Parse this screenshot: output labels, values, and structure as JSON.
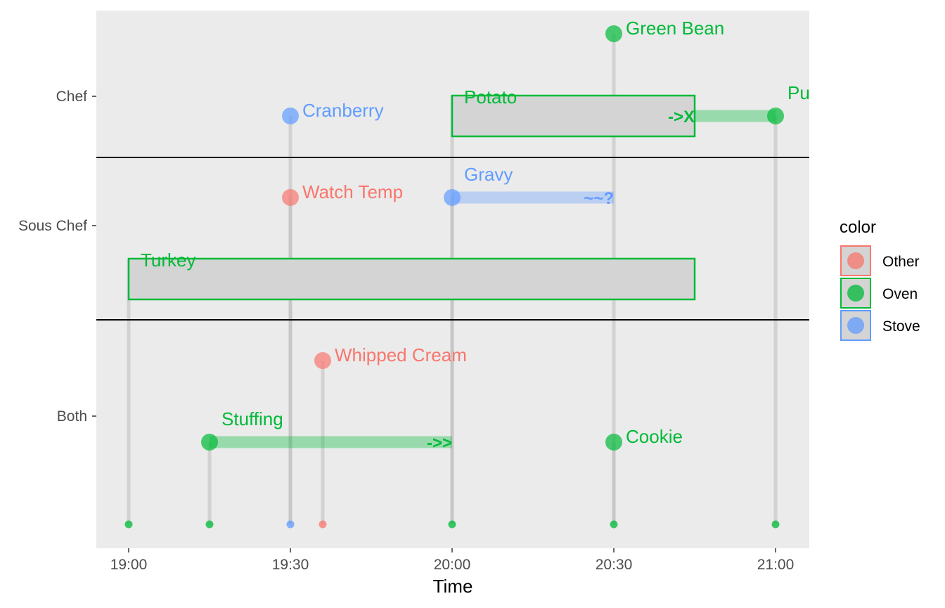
{
  "chart_data": {
    "type": "timeline",
    "xlabel": "Time",
    "x_ticks": [
      "19:00",
      "19:30",
      "20:00",
      "20:30",
      "21:00"
    ],
    "x_range": [
      "18:54",
      "21:06"
    ],
    "groups": [
      "Chef",
      "Sous Chef",
      "Both"
    ],
    "colors": {
      "Other": "#F8766D",
      "Oven": "#00BA38",
      "Stove": "#619CFF"
    },
    "legend": {
      "title": "color",
      "position": "right",
      "entries": [
        "Other",
        "Oven",
        "Stove"
      ]
    },
    "events": [
      {
        "label": "Green Bean",
        "group": "Chef",
        "color": "Oven",
        "start": "20:30",
        "kind": "point"
      },
      {
        "label": "Cranberry",
        "group": "Chef",
        "color": "Stove",
        "start": "19:30",
        "kind": "point"
      },
      {
        "label": "Potato",
        "group": "Chef",
        "color": "Oven",
        "start": "20:00",
        "end": "20:45",
        "kind": "box"
      },
      {
        "label": "Pu",
        "group": "Chef",
        "color": "Oven",
        "start": "21:00",
        "end": "20:45",
        "kind": "bar",
        "end_marker": "->X"
      },
      {
        "label": "Gravy",
        "group": "Sous Chef",
        "color": "Stove",
        "start": "20:00",
        "end": "20:30",
        "kind": "bar",
        "end_marker": "~~?"
      },
      {
        "label": "Watch Temp",
        "group": "Sous Chef",
        "color": "Other",
        "start": "19:30",
        "kind": "point"
      },
      {
        "label": "Turkey",
        "group": "Sous Chef",
        "color": "Oven",
        "start": "19:00",
        "end": "20:45",
        "kind": "box"
      },
      {
        "label": "Whipped Cream",
        "group": "Both",
        "color": "Other",
        "start": "19:36",
        "kind": "point"
      },
      {
        "label": "Stuffing",
        "group": "Both",
        "color": "Oven",
        "start": "19:15",
        "end": "20:00",
        "kind": "bar",
        "end_marker": "->>"
      },
      {
        "label": "Cookie",
        "group": "Both",
        "color": "Oven",
        "start": "20:30",
        "kind": "point"
      }
    ],
    "baseline_dots": [
      {
        "time": "19:00",
        "color": "Oven"
      },
      {
        "time": "19:15",
        "color": "Oven"
      },
      {
        "time": "19:30",
        "color": "Stove"
      },
      {
        "time": "19:36",
        "color": "Other"
      },
      {
        "time": "20:00",
        "color": "Oven"
      },
      {
        "time": "20:30",
        "color": "Oven"
      },
      {
        "time": "21:00",
        "color": "Oven"
      }
    ]
  }
}
